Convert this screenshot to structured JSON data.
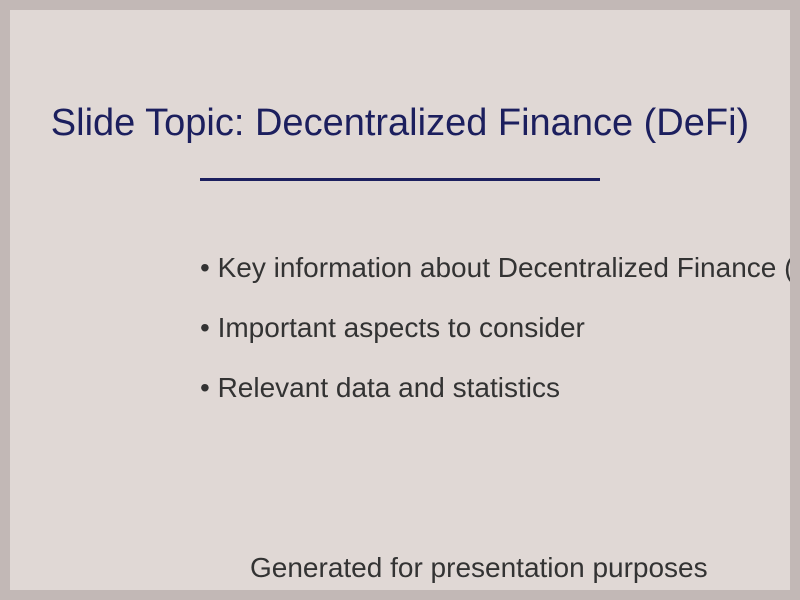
{
  "slide": {
    "title": "Slide Topic: Decentralized Finance (DeFi)",
    "bullets": [
      "• Key information about Decentralized Finance (DeFi)",
      "• Important aspects to consider",
      "• Relevant data and statistics"
    ],
    "footer": "Generated for presentation purposes"
  },
  "colors": {
    "background": "#e0d8d5",
    "border": "#c2b8b6",
    "title": "#1c1f5e",
    "body_text": "#333333"
  }
}
